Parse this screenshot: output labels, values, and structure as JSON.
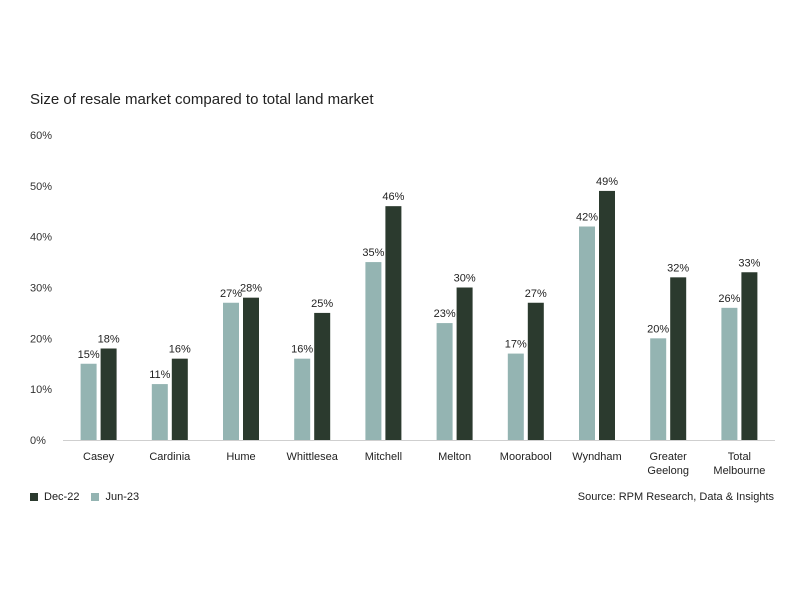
{
  "chart_data": {
    "type": "bar",
    "title": "Size of resale market compared to total land market",
    "categories": [
      [
        "Casey"
      ],
      [
        "Cardinia"
      ],
      [
        "Hume"
      ],
      [
        "Whittlesea"
      ],
      [
        "Mitchell"
      ],
      [
        "Melton"
      ],
      [
        "Moorabool"
      ],
      [
        "Wyndham"
      ],
      [
        "Greater",
        "Geelong"
      ],
      [
        "Total",
        "Melbourne"
      ]
    ],
    "series": [
      {
        "name": "Jun-23",
        "color": "#94b4b2",
        "values": [
          15,
          11,
          27,
          16,
          35,
          23,
          17,
          42,
          20,
          26
        ]
      },
      {
        "name": "Dec-22",
        "color": "#2b3a2e",
        "values": [
          18,
          16,
          28,
          25,
          46,
          30,
          27,
          49,
          32,
          33
        ]
      }
    ],
    "ylim": [
      0,
      60
    ],
    "yticks": [
      "0%",
      "10%",
      "20%",
      "30%",
      "40%",
      "50%",
      "60%"
    ],
    "value_suffix": "%",
    "legend": [
      {
        "name": "Dec-22",
        "color": "#2b3a2e"
      },
      {
        "name": "Jun-23",
        "color": "#94b4b2"
      }
    ],
    "legend_position": "bottom-left",
    "grid": false,
    "source": "Source: RPM Research, Data & Insights"
  }
}
